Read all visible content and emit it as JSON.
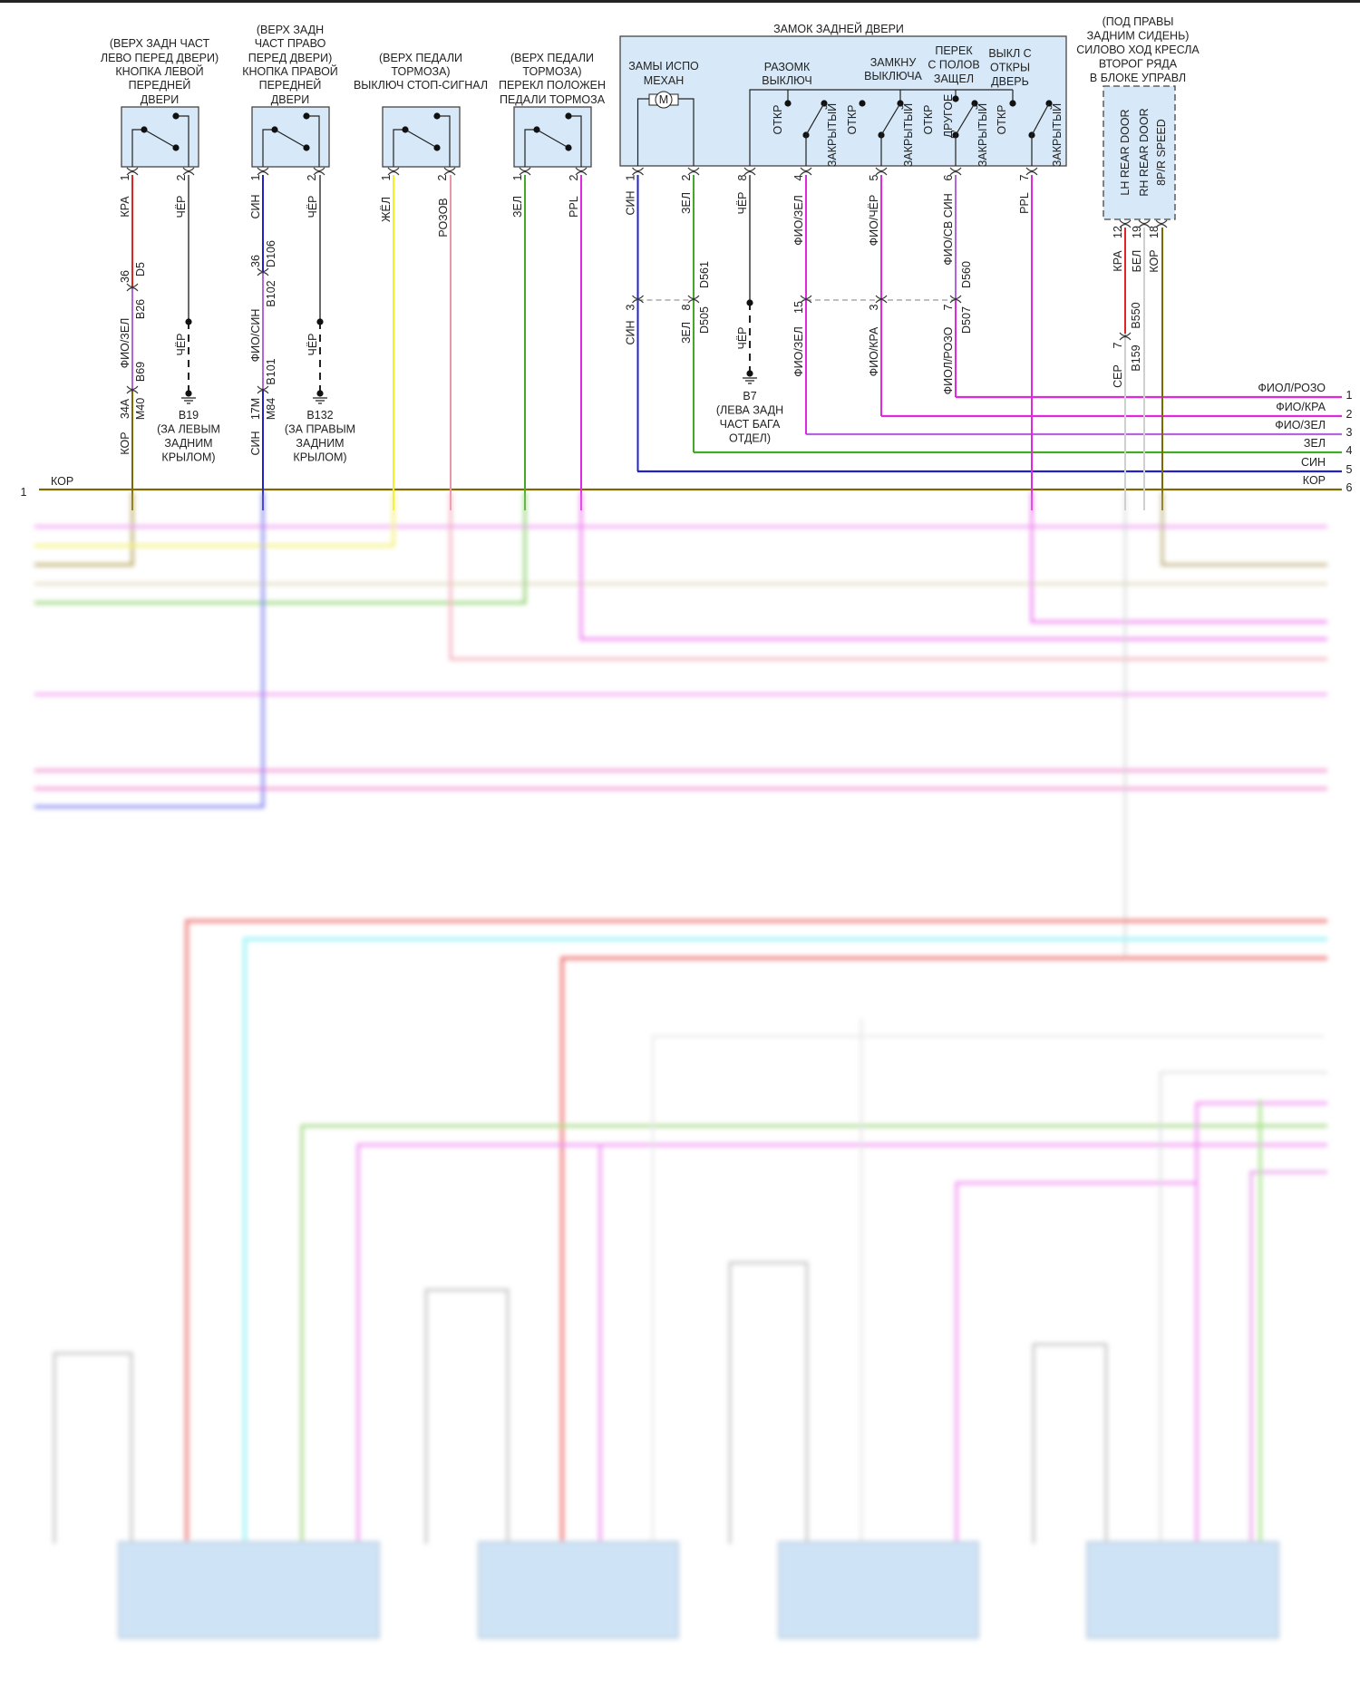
{
  "colors": {
    "red": "#e02424",
    "black": "#6a6a6a",
    "blue": "#2222c8",
    "violet": "#b464dc",
    "yellow": "#f2f222",
    "pink": "#e896a8",
    "green": "#44a828",
    "magenta": "#e028e0",
    "brown": "#7a6a00",
    "white": "#cfcfcf",
    "box_fill": "#d7e9f8",
    "cyan": "#8ff0f8"
  },
  "bus": {
    "left": {
      "label": "КОР",
      "num": "1"
    },
    "right": [
      {
        "label": "ФИОЛ/РОЗО",
        "num": "1"
      },
      {
        "label": "ФИО/КРА",
        "num": "2"
      },
      {
        "label": "ФИО/ЗЕЛ",
        "num": "3"
      },
      {
        "label": "ЗЕЛ",
        "num": "4"
      },
      {
        "label": "СИН",
        "num": "5"
      },
      {
        "label": "КОР",
        "num": "6"
      }
    ]
  },
  "left_door_button": {
    "lines": [
      "(ВЕРХ ЗАДН ЧАСТ",
      "ЛЕВО ПЕРЕД ДВЕРИ)",
      "КНОПКА ЛЕВОЙ",
      "ПЕРЕДНЕЙ",
      "ДВЕРИ"
    ],
    "pin1": "1",
    "pin2": "2",
    "w1": {
      "c1": "КРА",
      "pin_a": "36",
      "conn_a": "D5",
      "c2": "ФИО/ЗЕЛ",
      "conn_b": "B26",
      "conn_c": "B69",
      "pin_d": "34A",
      "conn_d": "M40",
      "c3": "КОР"
    },
    "w2": {
      "c1": "ЧЁР",
      "c2": "ЧЁР"
    },
    "ground": [
      "B19",
      "(ЗА ЛЕВЫМ",
      "ЗАДНИМ",
      "КРЫЛОМ)"
    ]
  },
  "right_door_button": {
    "lines": [
      "(ВЕРХ ЗАДН",
      "ЧАСТ ПРАВО",
      "ПЕРЕД ДВЕРИ)",
      "КНОПКА ПРАВОЙ",
      "ПЕРЕДНЕЙ",
      "ДВЕРИ"
    ],
    "pin1": "1",
    "pin2": "2",
    "w1": {
      "c1": "СИН",
      "pin_a": "36",
      "conn_a": "D106",
      "conn_b": "B102",
      "c2": "ФИО/СИН",
      "conn_c": "B101",
      "pin_d": "17M",
      "conn_d": "M84",
      "c3": "СИН"
    },
    "w2": {
      "c1": "ЧЁР",
      "c2": "ЧЁР"
    },
    "ground": [
      "B132",
      "(ЗА ПРАВЫМ",
      "ЗАДНИМ",
      "КРЫЛОМ)"
    ]
  },
  "stop_lamp_switch": {
    "lines": [
      "(ВЕРХ ПЕДАЛИ",
      "ТОРМОЗА)",
      "ВЫКЛЮЧ СТОП-СИГНАЛ"
    ],
    "pin1": "1",
    "pin2": "2",
    "w1": "ЖЁЛ",
    "w2": "РОЗОВ"
  },
  "brake_pedal_switch": {
    "lines": [
      "(ВЕРХ ПЕДАЛИ",
      "ТОРМОЗА)",
      "ПЕРЕКЛ ПОЛОЖЕН",
      "ПЕДАЛИ ТОРМОЗА"
    ],
    "pin1": "1",
    "pin2": "2",
    "w1": "ЗЕЛ",
    "w2": "PPL"
  },
  "liftgate_latch": {
    "title": "ЗАМОК ЗАДНЕЙ ДВЕРИ",
    "motor_label": [
      "ЗАМЫ ИСПО",
      "МЕХАН"
    ],
    "motor_symbol": "M",
    "open_switch": [
      "РАЗОМК",
      "ВЫКЛЮЧ"
    ],
    "closed_switch": [
      "ЗАМКНУ",
      "ВЫКЛЮЧА"
    ],
    "pawl_switch": [
      "ПЕРЕК",
      "С ПОЛОВ",
      "ЗАЩЕЛ"
    ],
    "ajar_switch": [
      "ВЫКЛ С",
      "ОТКРЫ",
      "ДВЕРЬ"
    ],
    "sw_labels": [
      "ОТКР",
      "ЗАКРЫТЫЙ",
      "ОТКР",
      "ЗАКРЫТЫЙ",
      "ОТКР",
      "ДРУГОЕ",
      "ЗАКРЫТЫЙ",
      "ОТКР",
      "ЗАКРЫТЫЙ"
    ],
    "pins": [
      "1",
      "2",
      "8",
      "4",
      "5",
      "6",
      "7"
    ],
    "wires_top": [
      "СИН",
      "ЗЕЛ",
      "ЧЁР",
      "ФИО/ЗЕЛ",
      "ФИО/ЧЁР",
      "ФИО/СВ СИН",
      "PPL"
    ],
    "conn_top": {
      "d561": "D561",
      "d560": "D560"
    },
    "lower_pins": [
      "3",
      "8",
      "15",
      "3",
      "7"
    ],
    "conn_bottom": {
      "d505": "D505",
      "d507": "D507"
    },
    "wires_bottom": [
      "СИН",
      "ЗЕЛ",
      "ЧЁР",
      "ФИО/ЗЕЛ",
      "ФИО/КРА",
      "ФИОЛ/РОЗО"
    ],
    "ground": [
      "B7",
      "(ЛЕВА ЗАДН",
      "ЧАСТ БАГА",
      "ОТДЕЛ)"
    ]
  },
  "seat_module": {
    "lines": [
      "(ПОД ПРАВЫ",
      "ЗАДНИМ СИДЕНЬ)",
      "СИЛОВО ХОД КРЕСЛА",
      "ВТОРОГ РЯДА",
      "В БЛОКЕ УПРАВЛ"
    ],
    "inputs": [
      "LH REAR DOOR",
      "RH REAR DOOR",
      "8P/R SPEED"
    ],
    "pins": [
      "12",
      "19",
      "18"
    ],
    "wires": [
      "КРА",
      "БЕЛ",
      "КОР"
    ],
    "conn": {
      "b550": "B550",
      "pin": "7",
      "b159": "B159",
      "wire": "СЕР"
    }
  }
}
